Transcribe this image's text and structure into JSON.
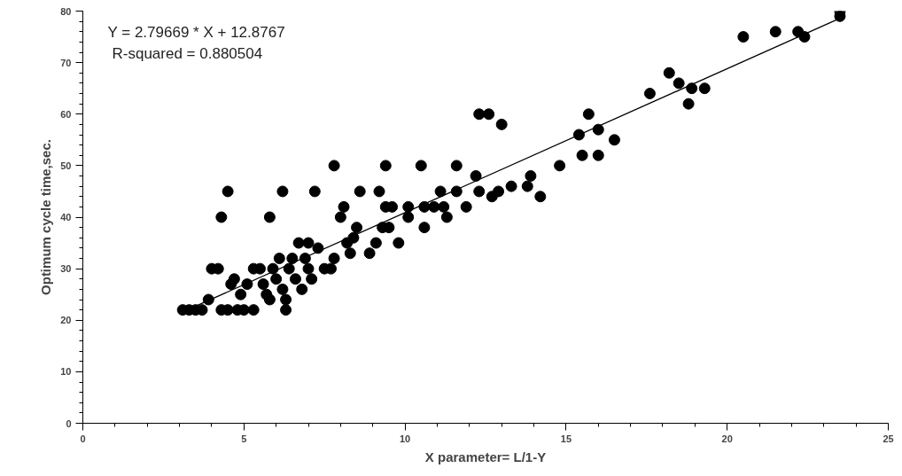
{
  "chart_data": {
    "type": "scatter",
    "xlabel": "X parameter= L/1-Y",
    "ylabel": "Optimum cycle time,sec.",
    "annotations": [
      "Y = 2.79669 * X + 12.8767",
      "R-squared = 0.880504"
    ],
    "xlim": [
      0,
      25
    ],
    "ylim": [
      0,
      80
    ],
    "xticks": [
      0,
      5,
      10,
      15,
      20,
      25
    ],
    "yticks": [
      0,
      10,
      20,
      30,
      40,
      50,
      60,
      70,
      80
    ],
    "grid": false,
    "series": [
      {
        "color": "#000000",
        "marker": "circle",
        "x": [
          3.1,
          3.3,
          3.5,
          3.7,
          3.9,
          4.0,
          4.2,
          4.3,
          4.3,
          4.5,
          4.5,
          4.6,
          4.7,
          4.8,
          4.9,
          5.0,
          5.1,
          5.3,
          5.3,
          5.5,
          5.6,
          5.7,
          5.8,
          5.8,
          5.9,
          6.0,
          6.1,
          6.2,
          6.2,
          6.3,
          6.3,
          6.4,
          6.5,
          6.6,
          6.7,
          6.8,
          6.9,
          7.0,
          7.0,
          7.1,
          7.2,
          7.3,
          7.5,
          7.7,
          7.8,
          7.8,
          8.0,
          8.1,
          8.2,
          8.3,
          8.4,
          8.5,
          8.6,
          8.9,
          9.1,
          9.2,
          9.3,
          9.4,
          9.4,
          9.5,
          9.6,
          9.8,
          10.1,
          10.1,
          10.5,
          10.6,
          10.6,
          10.9,
          11.1,
          11.2,
          11.3,
          11.6,
          11.6,
          11.9,
          12.2,
          12.3,
          12.3,
          12.6,
          12.7,
          12.9,
          13.0,
          13.3,
          13.8,
          13.9,
          14.2,
          14.8,
          15.4,
          15.5,
          15.7,
          16.0,
          16.0,
          16.5,
          17.6,
          18.2,
          18.5,
          18.8,
          18.9,
          19.3,
          20.5,
          21.5,
          22.2,
          22.4,
          23.5,
          23.5
        ],
        "values": [
          22,
          22,
          22,
          22,
          24,
          30,
          30,
          22,
          40,
          45,
          22,
          27,
          28,
          22,
          25,
          22,
          27,
          30,
          22,
          30,
          27,
          25,
          40,
          24,
          30,
          28,
          32,
          45,
          26,
          24,
          22,
          30,
          32,
          28,
          35,
          26,
          32,
          35,
          30,
          28,
          45,
          34,
          30,
          30,
          50,
          32,
          40,
          42,
          35,
          33,
          36,
          38,
          45,
          33,
          35,
          45,
          38,
          42,
          50,
          38,
          42,
          35,
          42,
          40,
          50,
          42,
          38,
          42,
          45,
          42,
          40,
          45,
          50,
          42,
          48,
          60,
          45,
          60,
          44,
          45,
          58,
          46,
          46,
          48,
          44,
          50,
          56,
          52,
          60,
          57,
          52,
          55,
          64,
          68,
          66,
          62,
          65,
          65,
          75,
          76,
          76,
          75,
          80,
          79
        ]
      },
      {
        "type": "line",
        "color": "#000000",
        "marker": "none",
        "line_style": "solid",
        "x": [
          3.1,
          23.5
        ],
        "values": [
          21.6,
          78.6
        ]
      }
    ]
  }
}
